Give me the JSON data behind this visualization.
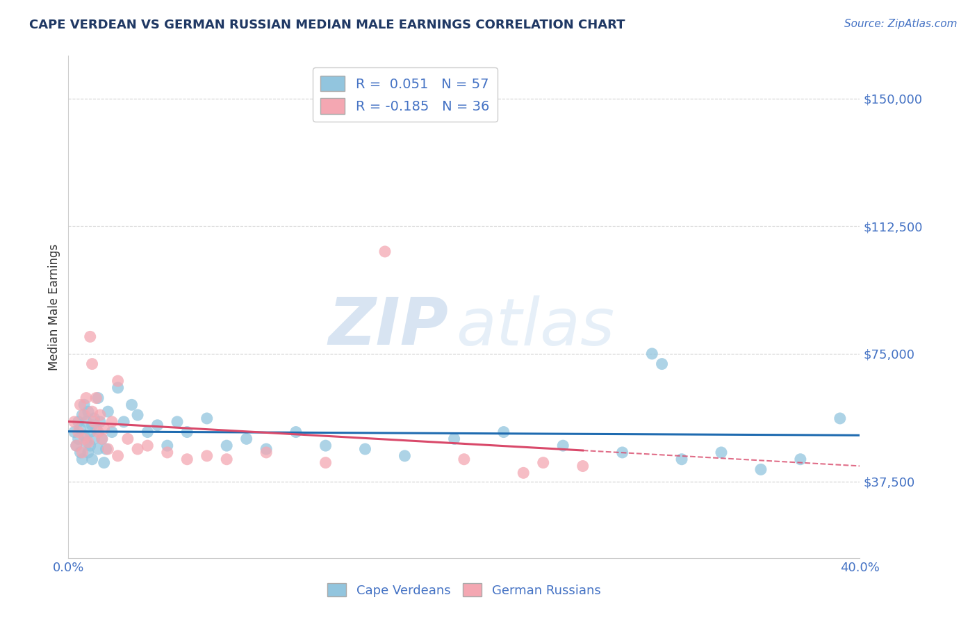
{
  "title": "CAPE VERDEAN VS GERMAN RUSSIAN MEDIAN MALE EARNINGS CORRELATION CHART",
  "source": "Source: ZipAtlas.com",
  "ylabel": "Median Male Earnings",
  "xlim": [
    0.0,
    0.4
  ],
  "ylim": [
    15000,
    162500
  ],
  "yticks": [
    37500,
    75000,
    112500,
    150000
  ],
  "ytick_labels": [
    "$37,500",
    "$75,000",
    "$112,500",
    "$150,000"
  ],
  "xticks": [
    0.0,
    0.05,
    0.1,
    0.15,
    0.2,
    0.25,
    0.3,
    0.35,
    0.4
  ],
  "xtick_labels": [
    "0.0%",
    "",
    "",
    "",
    "",
    "",
    "",
    "",
    "40.0%"
  ],
  "blue_R": 0.051,
  "blue_N": 57,
  "pink_R": -0.185,
  "pink_N": 36,
  "blue_color": "#92c5de",
  "pink_color": "#f4a7b2",
  "blue_line_color": "#1f6bb0",
  "pink_line_color": "#d9496a",
  "blue_scatter_x": [
    0.003,
    0.004,
    0.005,
    0.005,
    0.006,
    0.006,
    0.007,
    0.007,
    0.008,
    0.008,
    0.009,
    0.009,
    0.01,
    0.01,
    0.011,
    0.011,
    0.012,
    0.012,
    0.013,
    0.013,
    0.014,
    0.015,
    0.015,
    0.016,
    0.017,
    0.018,
    0.019,
    0.02,
    0.022,
    0.025,
    0.028,
    0.032,
    0.035,
    0.04,
    0.045,
    0.05,
    0.055,
    0.06,
    0.07,
    0.08,
    0.09,
    0.1,
    0.115,
    0.13,
    0.15,
    0.17,
    0.195,
    0.22,
    0.25,
    0.28,
    0.295,
    0.31,
    0.33,
    0.35,
    0.37,
    0.39,
    0.3
  ],
  "blue_scatter_y": [
    52000,
    48000,
    55000,
    50000,
    53000,
    46000,
    57000,
    44000,
    51000,
    60000,
    49000,
    55000,
    46000,
    58000,
    52000,
    48000,
    54000,
    44000,
    50000,
    56000,
    53000,
    47000,
    62000,
    55000,
    50000,
    43000,
    47000,
    58000,
    52000,
    65000,
    55000,
    60000,
    57000,
    52000,
    54000,
    48000,
    55000,
    52000,
    56000,
    48000,
    50000,
    47000,
    52000,
    48000,
    47000,
    45000,
    50000,
    52000,
    48000,
    46000,
    75000,
    44000,
    46000,
    41000,
    44000,
    56000,
    72000
  ],
  "pink_scatter_x": [
    0.003,
    0.004,
    0.005,
    0.006,
    0.007,
    0.008,
    0.008,
    0.009,
    0.01,
    0.011,
    0.012,
    0.013,
    0.014,
    0.015,
    0.016,
    0.017,
    0.018,
    0.02,
    0.022,
    0.025,
    0.03,
    0.035,
    0.04,
    0.05,
    0.06,
    0.07,
    0.08,
    0.1,
    0.13,
    0.16,
    0.2,
    0.24,
    0.26,
    0.23,
    0.025,
    0.012
  ],
  "pink_scatter_y": [
    55000,
    48000,
    52000,
    60000,
    46000,
    57000,
    50000,
    62000,
    49000,
    80000,
    58000,
    55000,
    62000,
    52000,
    57000,
    50000,
    53000,
    47000,
    55000,
    45000,
    50000,
    47000,
    48000,
    46000,
    44000,
    45000,
    44000,
    46000,
    43000,
    105000,
    44000,
    43000,
    42000,
    40000,
    67000,
    72000
  ],
  "watermark_part1": "ZIP",
  "watermark_part2": "atlas",
  "background_color": "#ffffff",
  "grid_color": "#d0d0d0",
  "tick_label_color": "#4472c4",
  "title_color": "#1f3864",
  "legend_label_color": "#4472c4"
}
